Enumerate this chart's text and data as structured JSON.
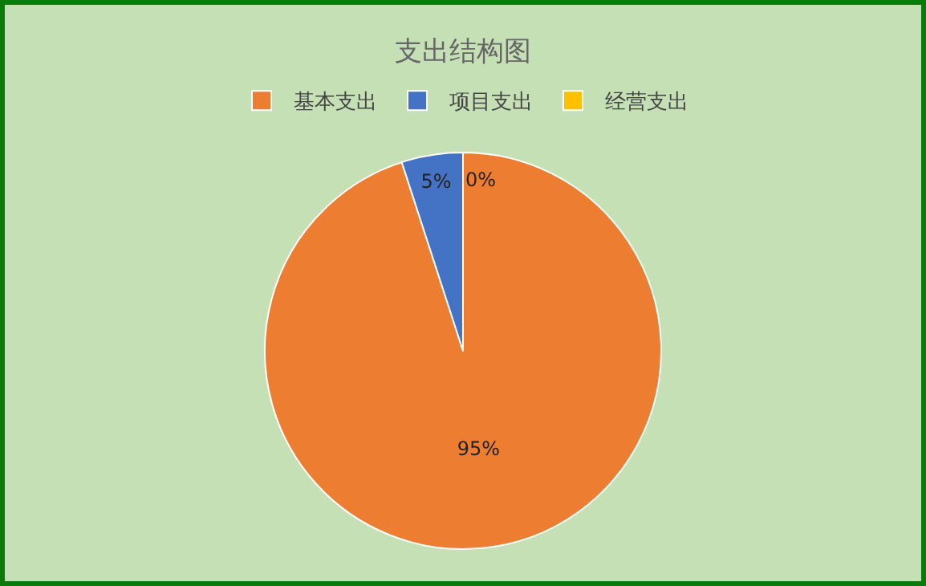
{
  "chart_data": {
    "type": "pie",
    "title": "支出结构图",
    "categories": [
      "基本支出",
      "项目支出",
      "经营支出"
    ],
    "values": [
      95,
      5,
      0
    ],
    "colors": [
      "#ed7d31",
      "#4472c4",
      "#ffc000"
    ],
    "value_labels": [
      "95%",
      "5%",
      "0%"
    ],
    "legend": "top"
  }
}
